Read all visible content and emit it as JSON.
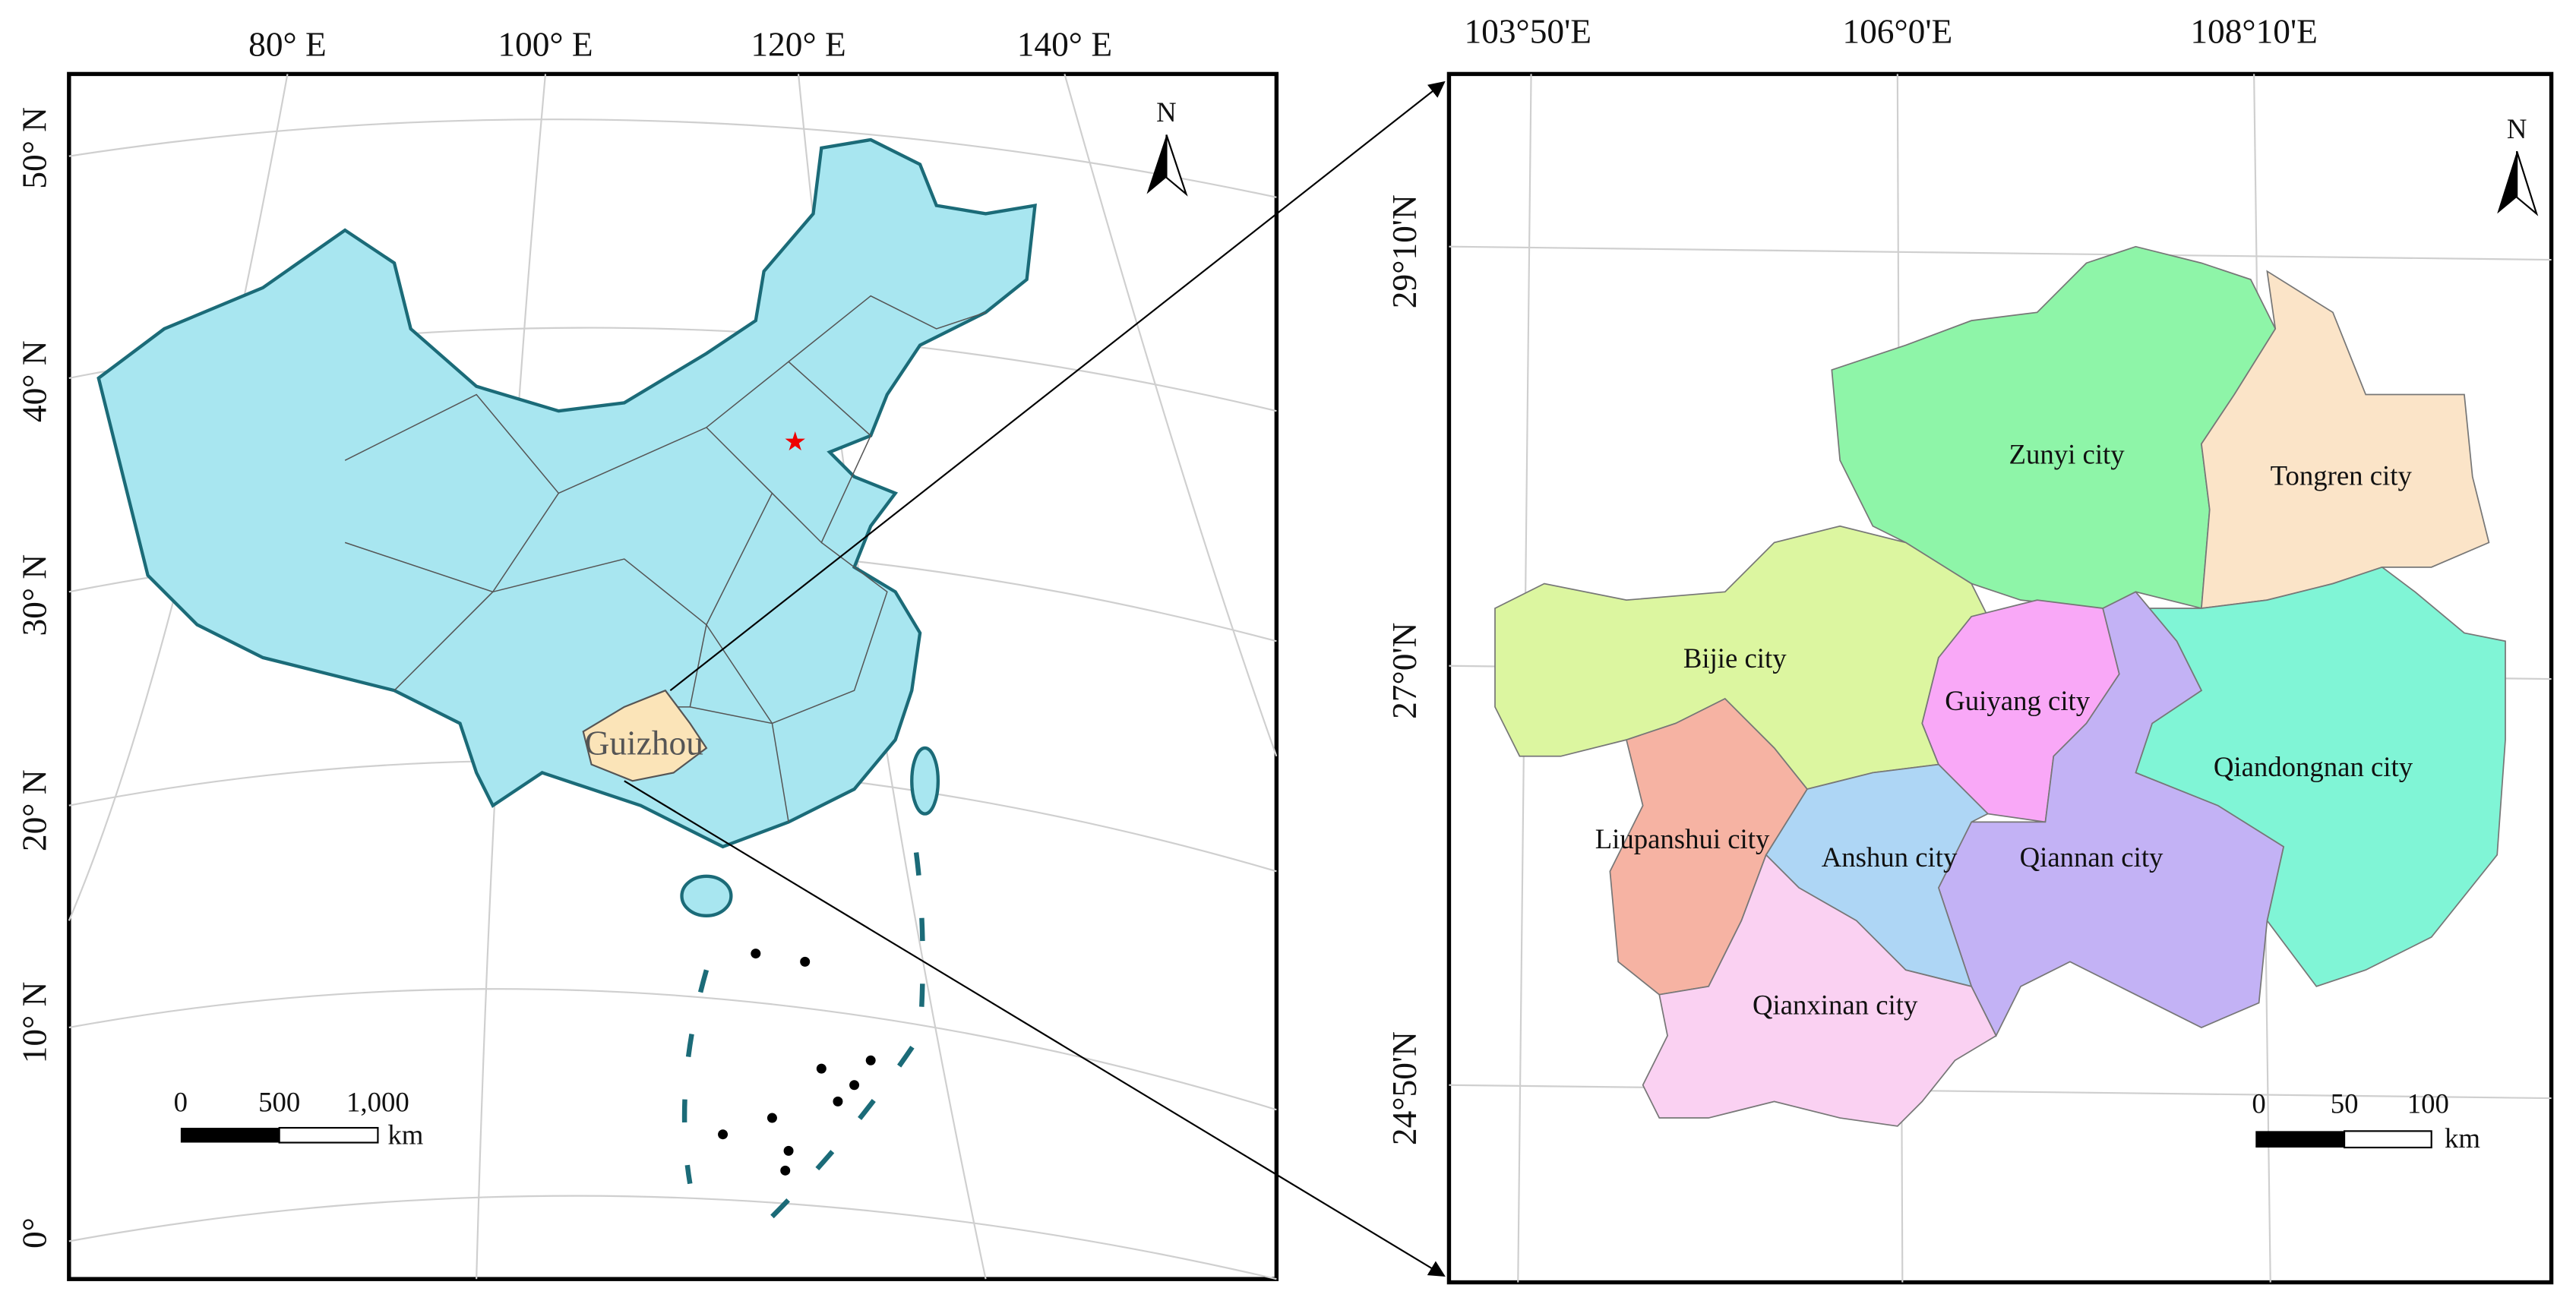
{
  "left_map": {
    "longitude_labels": [
      "80° E",
      "100° E",
      "120° E",
      "140° E"
    ],
    "latitude_labels": [
      "50° N",
      "40° N",
      "30° N",
      "20° N",
      "10° N",
      "0°"
    ],
    "province_label": "Guizhou",
    "north": "N",
    "scale": {
      "labels": [
        "0",
        "500",
        "1,000"
      ],
      "unit": "km"
    }
  },
  "right_map": {
    "longitude_labels": [
      "103°50'E",
      "106°0'E",
      "108°10'E"
    ],
    "latitude_labels": [
      "29°10'N",
      "27°0'N",
      "24°50'N"
    ],
    "north": "N",
    "scale": {
      "labels": [
        "0",
        "50",
        "100"
      ],
      "unit": "km"
    },
    "cities": [
      "Zunyi city",
      "Tongren city",
      "Bijie city",
      "Guiyang city",
      "Qiandongnan city",
      "Liupanshui city",
      "Anshun city",
      "Qiannan city",
      "Qianxinan city"
    ]
  }
}
